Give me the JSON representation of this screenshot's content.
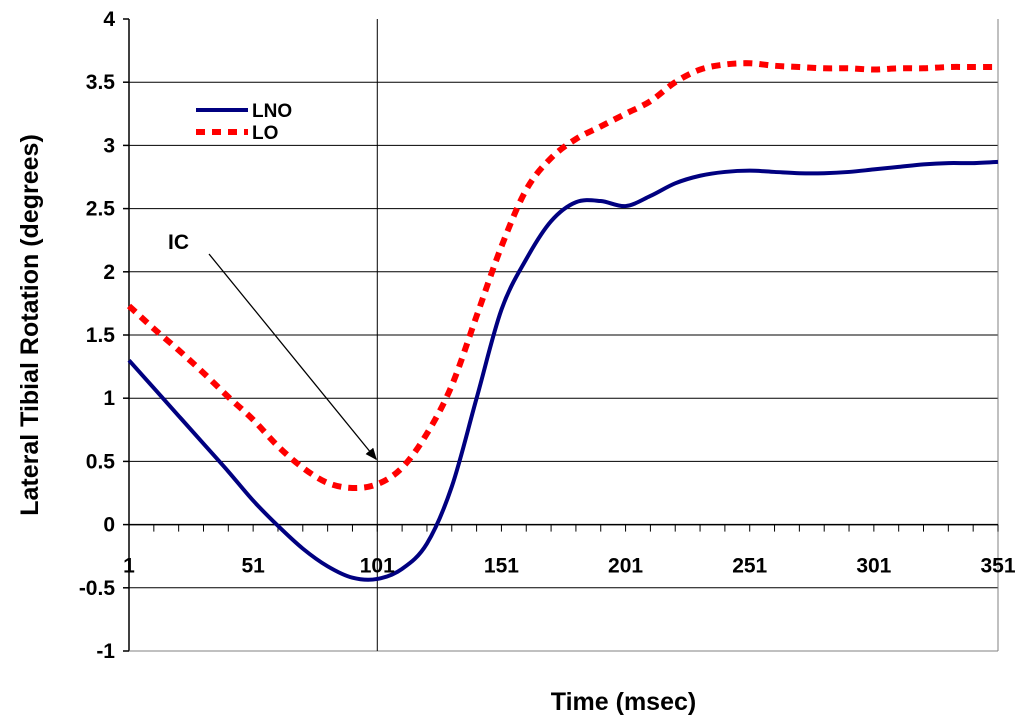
{
  "chart_data": {
    "type": "line",
    "title": "",
    "xlabel": "Time (msec)",
    "ylabel": "Lateral Tibial Rotation (degrees)",
    "xlim": [
      1,
      351
    ],
    "ylim": [
      -1,
      4
    ],
    "x_ticks": [
      1,
      51,
      101,
      151,
      201,
      251,
      301,
      351
    ],
    "y_ticks": [
      -1,
      -0.5,
      0,
      0.5,
      1,
      1.5,
      2,
      2.5,
      3,
      3.5,
      4
    ],
    "grid": "horizontal",
    "legend_position": "top-left",
    "series": [
      {
        "name": "LNO",
        "color": "#000080",
        "style": "solid",
        "x": [
          1,
          11,
          21,
          31,
          41,
          51,
          61,
          71,
          81,
          91,
          101,
          111,
          121,
          131,
          141,
          151,
          161,
          171,
          181,
          191,
          201,
          211,
          221,
          231,
          241,
          251,
          261,
          271,
          281,
          291,
          301,
          311,
          321,
          331,
          341,
          351
        ],
        "y": [
          1.3,
          1.08,
          0.86,
          0.64,
          0.42,
          0.19,
          -0.01,
          -0.19,
          -0.33,
          -0.42,
          -0.43,
          -0.35,
          -0.15,
          0.3,
          1.0,
          1.7,
          2.1,
          2.4,
          2.55,
          2.56,
          2.52,
          2.6,
          2.7,
          2.76,
          2.79,
          2.8,
          2.79,
          2.78,
          2.78,
          2.79,
          2.81,
          2.83,
          2.85,
          2.86,
          2.86,
          2.87
        ]
      },
      {
        "name": "LO",
        "color": "#ff0000",
        "style": "dashed",
        "x": [
          1,
          11,
          21,
          31,
          41,
          51,
          61,
          71,
          81,
          91,
          101,
          111,
          121,
          131,
          141,
          151,
          161,
          171,
          181,
          191,
          201,
          211,
          221,
          231,
          241,
          251,
          261,
          271,
          281,
          291,
          301,
          311,
          321,
          331,
          341,
          351
        ],
        "y": [
          1.73,
          1.55,
          1.38,
          1.2,
          1.01,
          0.83,
          0.62,
          0.45,
          0.33,
          0.29,
          0.32,
          0.45,
          0.72,
          1.1,
          1.65,
          2.2,
          2.65,
          2.9,
          3.05,
          3.15,
          3.25,
          3.35,
          3.5,
          3.6,
          3.64,
          3.65,
          3.63,
          3.62,
          3.61,
          3.61,
          3.6,
          3.61,
          3.61,
          3.62,
          3.62,
          3.62
        ]
      }
    ],
    "reference_line": {
      "x": 101
    },
    "annotations": [
      {
        "text": "IC",
        "points_to": {
          "x": 101,
          "y": 0.5
        }
      }
    ]
  }
}
